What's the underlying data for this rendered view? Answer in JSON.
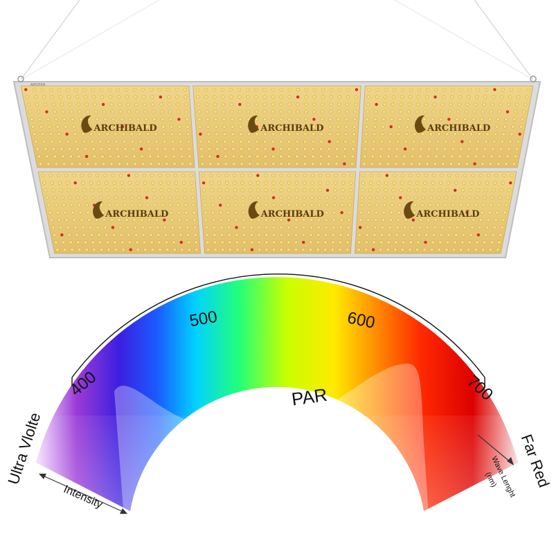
{
  "brand": {
    "name": "ARCHIBALD",
    "model_tag": "ARS2000"
  },
  "panel": {
    "rows": 2,
    "cols": 3,
    "led_color": "#f7e27a",
    "led_center_color": "#fff8c4",
    "led_red_color": "#e0301a",
    "board_color": "#e8c777",
    "frame_color": "#d4d4d4"
  },
  "spectrum": {
    "ticks": [
      {
        "label": "400",
        "value": 400
      },
      {
        "label": "500",
        "value": 500
      },
      {
        "label": "600",
        "value": 600
      },
      {
        "label": "700",
        "value": 700
      }
    ],
    "par_label": "PAR",
    "uv_label": "Ultra Vlolte",
    "far_red_label": "Far Red",
    "intensity_label": "Intensity",
    "wavelength_label": "Wave Lenght",
    "wavelength_unit": "(nm)",
    "colors": [
      "#e8c8ff",
      "#9b3bd6",
      "#4a1fd8",
      "#1a4cff",
      "#00c8ff",
      "#22ff88",
      "#c8ff00",
      "#ffe600",
      "#ff8800",
      "#ff2a00",
      "#e00000",
      "#f4c8c8"
    ]
  }
}
